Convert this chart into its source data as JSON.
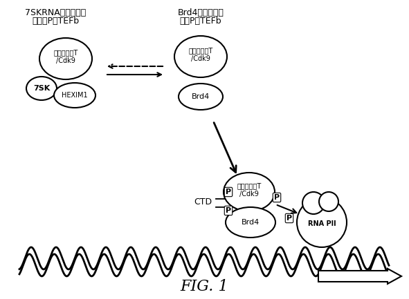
{
  "background_color": "#ffffff",
  "fig_label": "FIG. 1",
  "fig_label_fontsize": 16,
  "fig_label_style": "italic",
  "label_left_title1": "7SKRNAが結合した",
  "label_left_title2": "不活性P－TEFb",
  "label_right_title1": "Brd4が結合した",
  "label_right_title2": "活性P－TEFb",
  "cyclinT_Cdk9_text": "サイクリンT\n/Cdk9",
  "hexim1_text": "HEXIM1",
  "7sk_text": "7SK",
  "brd4_text": "Brd4",
  "ctd_text": "CTD",
  "rna_pol_text": "RNA PII",
  "p_text": "P",
  "circle_color": "#ffffff",
  "circle_edge_color": "#000000",
  "circle_linewidth": 1.5,
  "wave_color": "#000000",
  "wave_linewidth": 2.0,
  "arrow_color": "#000000",
  "text_color": "#000000",
  "fontsize_labels": 9,
  "fontsize_circle": 8,
  "fontsize_small": 7,
  "fontsize_p": 7
}
